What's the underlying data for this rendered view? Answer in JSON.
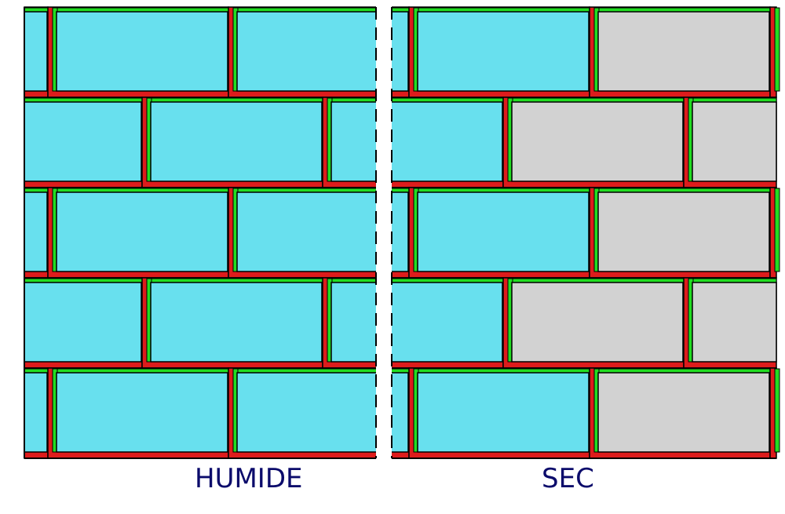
{
  "labels": {
    "wet": "HUMIDE",
    "dry": "SEC"
  },
  "colors": {
    "wet_brick": "#68e0ee",
    "dry_brick": "#d2d2d2",
    "mortar_green": "#22dd22",
    "mortar_red": "#dd1c1c",
    "outline": "#000000",
    "divider": "#ffffff"
  },
  "wall": {
    "rows": 5
  }
}
